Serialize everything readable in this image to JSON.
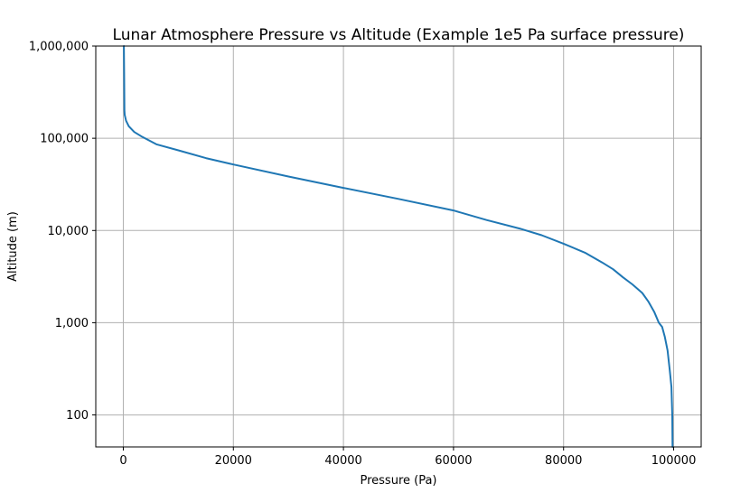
{
  "chart_data": {
    "type": "line",
    "title": "Lunar Atmosphere Pressure vs Altitude (Example 1e5 Pa surface pressure)",
    "xlabel": "Pressure (Pa)",
    "ylabel": "Altitude (m)",
    "xlim": [
      -5000,
      105000
    ],
    "ylim": [
      45,
      1000000
    ],
    "yscale": "log",
    "grid": true,
    "x_ticks": [
      {
        "value": 0,
        "label": "0"
      },
      {
        "value": 20000,
        "label": "20000"
      },
      {
        "value": 40000,
        "label": "40000"
      },
      {
        "value": 60000,
        "label": "60000"
      },
      {
        "value": 80000,
        "label": "80000"
      },
      {
        "value": 100000,
        "label": "100000"
      }
    ],
    "y_ticks": [
      {
        "value": 100,
        "label": "100"
      },
      {
        "value": 1000,
        "label": "1,000"
      },
      {
        "value": 10000,
        "label": "10,000"
      },
      {
        "value": 100000,
        "label": "100,000"
      },
      {
        "value": 1000000,
        "label": "1,000,000"
      }
    ],
    "series": [
      {
        "color": "#1f77b4",
        "points": [
          [
            99800,
            45
          ],
          [
            99750,
            100
          ],
          [
            99600,
            200
          ],
          [
            99300,
            300
          ],
          [
            98900,
            500
          ],
          [
            98400,
            700
          ],
          [
            97900,
            900
          ],
          [
            97300,
            1000
          ],
          [
            96500,
            1300
          ],
          [
            95400,
            1700
          ],
          [
            94300,
            2100
          ],
          [
            92500,
            2600
          ],
          [
            90800,
            3100
          ],
          [
            89000,
            3800
          ],
          [
            87000,
            4500
          ],
          [
            84000,
            5700
          ],
          [
            80000,
            7200
          ],
          [
            76000,
            8900
          ],
          [
            72000,
            10500
          ],
          [
            66000,
            13000
          ],
          [
            60000,
            16500
          ],
          [
            50000,
            22000
          ],
          [
            40000,
            29000
          ],
          [
            30000,
            38500
          ],
          [
            20000,
            52000
          ],
          [
            15000,
            61000
          ],
          [
            10000,
            74000
          ],
          [
            6000,
            86000
          ],
          [
            3500,
            103000
          ],
          [
            2000,
            117000
          ],
          [
            1000,
            135000
          ],
          [
            500,
            155000
          ],
          [
            250,
            180000
          ],
          [
            200,
            200000
          ],
          [
            150,
            500000
          ],
          [
            100,
            1000000
          ]
        ]
      }
    ]
  }
}
